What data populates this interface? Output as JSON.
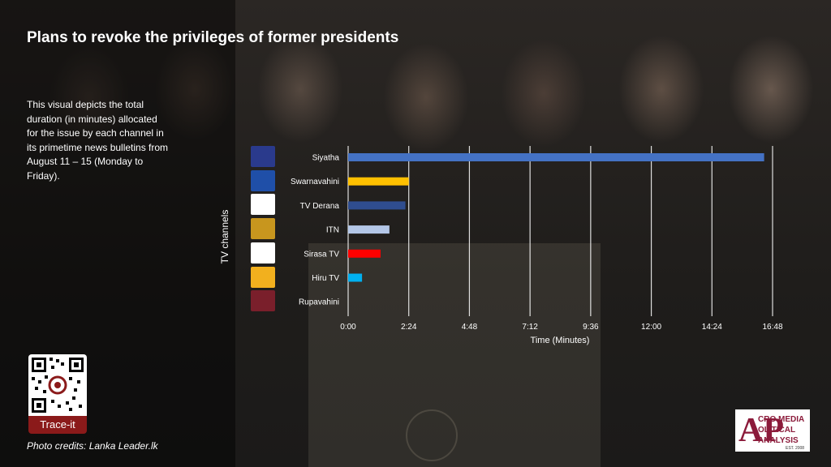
{
  "title": "Plans to revoke the privileges of former presidents",
  "description": "This visual depicts the total duration  (in minutes) allocated for the issue by each channel in its primetime news bulletins from August 11 – 15  (Monday to Friday).",
  "trace_label": "Trace-it",
  "photo_credits": "Photo credits: Lanka Leader.lk",
  "brand": {
    "initials": "AP",
    "line1": "CRO MEDIA",
    "line2": "OLITICAL",
    "line3": "ANALYSIS",
    "est": "EST. 2008"
  },
  "channel_logos": [
    {
      "name": "siyatha-logo",
      "color": "#2a3a8c"
    },
    {
      "name": "swarnavahini-logo",
      "color": "#1f4fa8"
    },
    {
      "name": "tv-derana-logo",
      "color": "#ffffff"
    },
    {
      "name": "itn-logo",
      "color": "#c8961e"
    },
    {
      "name": "sirasa-tv-logo",
      "color": "#ffffff"
    },
    {
      "name": "hiru-tv-logo",
      "color": "#f2b01e"
    },
    {
      "name": "rupavahini-logo",
      "color": "#7a1f2b"
    }
  ],
  "chart_data": {
    "type": "bar",
    "orientation": "horizontal",
    "xlabel": "Time (Minutes)",
    "ylabel": "TV channels",
    "categories": [
      "Siyatha",
      "Swarnavahini",
      "TV Derana",
      "ITN",
      "Sirasa TV",
      "Hiru TV",
      "Rupavahini"
    ],
    "values_seconds": [
      988,
      144,
      136,
      98,
      77,
      33,
      0
    ],
    "colors": [
      "#4472c4",
      "#ffc000",
      "#2f4d8f",
      "#b4c7e7",
      "#ff0000",
      "#00b0f0",
      "#ffffff"
    ],
    "xlim_seconds": [
      0,
      1008
    ],
    "x_ticks": [
      "0:00",
      "2:24",
      "4:48",
      "7:12",
      "9:36",
      "12:00",
      "14:24",
      "16:48"
    ],
    "grid": true
  }
}
